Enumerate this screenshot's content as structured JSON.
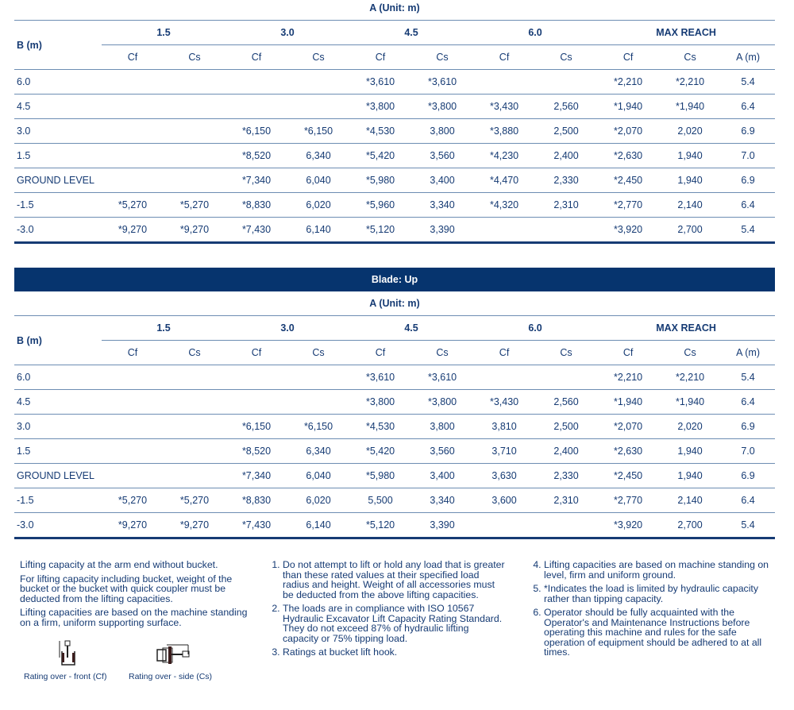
{
  "unit_label": "A (Unit: m)",
  "b_label": "B (m)",
  "groups": [
    "1.5",
    "3.0",
    "4.5",
    "6.0",
    "MAX REACH"
  ],
  "sub_headers": [
    "Cf",
    "Cs",
    "Cf",
    "Cs",
    "Cf",
    "Cs",
    "Cf",
    "Cs",
    "Cf",
    "Cs",
    "A (m)"
  ],
  "table1": {
    "rows": [
      [
        "6.0",
        "",
        "",
        "",
        "",
        "*3,610",
        "*3,610",
        "",
        "",
        "*2,210",
        "*2,210",
        "5.4"
      ],
      [
        "4.5",
        "",
        "",
        "",
        "",
        "*3,800",
        "*3,800",
        "*3,430",
        "2,560",
        "*1,940",
        "*1,940",
        "6.4"
      ],
      [
        "3.0",
        "",
        "",
        "*6,150",
        "*6,150",
        "*4,530",
        "3,800",
        "*3,880",
        "2,500",
        "*2,070",
        "2,020",
        "6.9"
      ],
      [
        "1.5",
        "",
        "",
        "*8,520",
        "6,340",
        "*5,420",
        "3,560",
        "*4,230",
        "2,400",
        "*2,630",
        "1,940",
        "7.0"
      ],
      [
        "GROUND LEVEL",
        "",
        "",
        "*7,340",
        "6,040",
        "*5,980",
        "3,400",
        "*4,470",
        "2,330",
        "*2,450",
        "1,940",
        "6.9"
      ],
      [
        "-1.5",
        "*5,270",
        "*5,270",
        "*8,830",
        "6,020",
        "*5,960",
        "3,340",
        "*4,320",
        "2,310",
        "*2,770",
        "2,140",
        "6.4"
      ],
      [
        "-3.0",
        "*9,270",
        "*9,270",
        "*7,430",
        "6,140",
        "*5,120",
        "3,390",
        "",
        "",
        "*3,920",
        "2,700",
        "5.4"
      ]
    ]
  },
  "table2": {
    "band": "Blade: Up",
    "rows": [
      [
        "6.0",
        "",
        "",
        "",
        "",
        "*3,610",
        "*3,610",
        "",
        "",
        "*2,210",
        "*2,210",
        "5.4"
      ],
      [
        "4.5",
        "",
        "",
        "",
        "",
        "*3,800",
        "*3,800",
        "*3,430",
        "2,560",
        "*1,940",
        "*1,940",
        "6.4"
      ],
      [
        "3.0",
        "",
        "",
        "*6,150",
        "*6,150",
        "*4,530",
        "3,800",
        "3,810",
        "2,500",
        "*2,070",
        "2,020",
        "6.9"
      ],
      [
        "1.5",
        "",
        "",
        "*8,520",
        "6,340",
        "*5,420",
        "3,560",
        "3,710",
        "2,400",
        "*2,630",
        "1,940",
        "7.0"
      ],
      [
        "GROUND LEVEL",
        "",
        "",
        "*7,340",
        "6,040",
        "*5,980",
        "3,400",
        "3,630",
        "2,330",
        "*2,450",
        "1,940",
        "6.9"
      ],
      [
        "-1.5",
        "*5,270",
        "*5,270",
        "*8,830",
        "6,020",
        "5,500",
        "3,340",
        "3,600",
        "2,310",
        "*2,770",
        "2,140",
        "6.4"
      ],
      [
        "-3.0",
        "*9,270",
        "*9,270",
        "*7,430",
        "6,140",
        "*5,120",
        "3,390",
        "",
        "",
        "*3,920",
        "2,700",
        "5.4"
      ]
    ]
  },
  "notes": {
    "left": [
      "Lifting capacity at the arm end without bucket.",
      "For lifting capacity including bucket, weight of the bucket or the bucket with quick coupler must be deducted from the lifting capacities.",
      "Lifting capacities are based on the machine standing on a firm, uniform supporting surface."
    ],
    "mid": [
      "Do not attempt to lift or hold any load that is greater than these rated values at their specified load radius and height. Weight of all accessories must be deducted from the above lifting capacities.",
      "The loads are in compliance with ISO 10567 Hydraulic Excavator Lift Capacity Rating Standard. They do not exceed 87% of hydraulic lifting capacity or 75% tipping load.",
      "Ratings at bucket lift hook."
    ],
    "right": [
      "Lifting capacities are based on machine standing on level, firm and uniform ground.",
      "*Indicates the load is limited by hydraulic capacity rather than tipping capacity.",
      "Operator should be fully acquainted with the Operator's and Maintenance Instructions before operating this machine and rules for the safe operation of equipment should be adhered to at all times."
    ],
    "front_caption": "Rating over - front (Cf)",
    "side_caption": "Rating over - side (Cs)"
  },
  "colors": {
    "text": "#163b74",
    "band": "#06346e",
    "rule": "#6d8db3"
  }
}
